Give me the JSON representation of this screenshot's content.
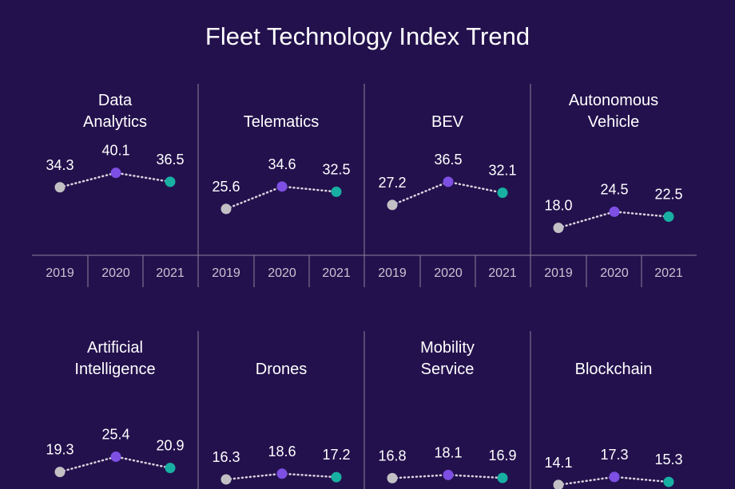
{
  "chart_data": {
    "type": "dot_line",
    "title": "Fleet Technology Index Trend",
    "categories": [
      "2019",
      "2020",
      "2021"
    ],
    "colors": [
      "#c2c0c4",
      "#7d4fe3",
      "#17b0a2"
    ],
    "ylim": [
      7,
      48
    ],
    "panels": [
      {
        "title": "Data Analytics",
        "values": [
          34.3,
          40.1,
          36.5
        ],
        "value_labels": [
          "34.3",
          "40.1",
          "36.5"
        ]
      },
      {
        "title": "Telematics",
        "values": [
          25.6,
          34.6,
          32.5
        ],
        "value_labels": [
          "25.6",
          "34.6",
          "32.5"
        ]
      },
      {
        "title": "BEV",
        "values": [
          27.2,
          36.5,
          32.1
        ],
        "value_labels": [
          "27.2",
          "36.5",
          "32.1"
        ]
      },
      {
        "title": "Autonomous Vehicle",
        "values": [
          18.0,
          24.5,
          22.5
        ],
        "value_labels": [
          "18.0",
          "24.5",
          "22.5"
        ]
      },
      {
        "title": "Artificial Intelligence",
        "values": [
          19.3,
          25.4,
          20.9
        ],
        "value_labels": [
          "19.3",
          "25.4",
          "20.9"
        ]
      },
      {
        "title": "Drones",
        "values": [
          16.3,
          18.6,
          17.2
        ],
        "value_labels": [
          "16.3",
          "18.6",
          "17.2"
        ]
      },
      {
        "title": "Mobility Service",
        "values": [
          16.8,
          18.1,
          16.9
        ],
        "value_labels": [
          "16.8",
          "18.1",
          "16.9"
        ]
      },
      {
        "title": "Blockchain",
        "values": [
          14.1,
          17.3,
          15.3
        ],
        "value_labels": [
          "14.1",
          "17.3",
          "15.3"
        ]
      }
    ]
  }
}
